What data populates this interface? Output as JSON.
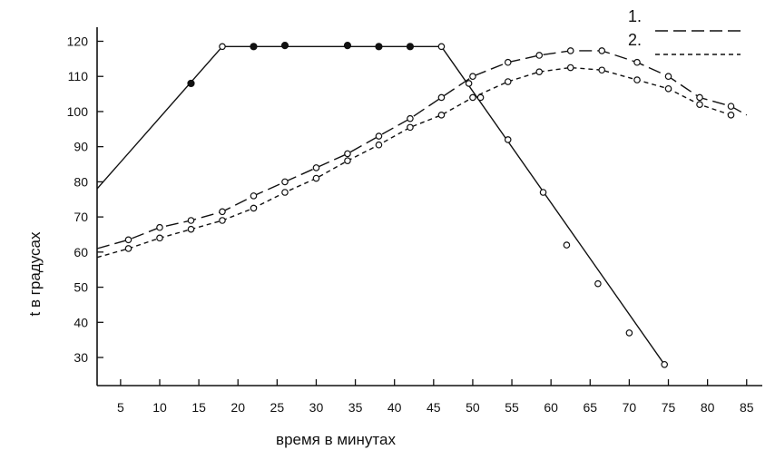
{
  "chart_data": {
    "type": "line",
    "xlabel": "время в минутах",
    "ylabel": "t  в градусах",
    "xlim": [
      2,
      87
    ],
    "ylim": [
      22,
      124
    ],
    "x_ticks": [
      5,
      10,
      15,
      20,
      25,
      30,
      35,
      40,
      45,
      50,
      55,
      60,
      65,
      70,
      75,
      80,
      85
    ],
    "y_ticks": [
      30,
      40,
      50,
      60,
      70,
      80,
      90,
      100,
      110,
      120
    ],
    "grid": false,
    "legend": {
      "placement": "top-right",
      "entries": [
        {
          "label": "1.",
          "series": 1
        },
        {
          "label": "2.",
          "series": 2
        }
      ]
    },
    "series": [
      {
        "style": "solid",
        "line": [
          [
            2,
            78
          ],
          [
            18,
            118.5
          ],
          [
            46,
            118.5
          ],
          [
            74.5,
            28
          ]
        ],
        "filled_markers": [
          [
            14,
            108
          ],
          [
            22,
            118.5
          ],
          [
            26,
            118.8
          ],
          [
            34,
            118.8
          ],
          [
            38,
            118.5
          ],
          [
            42,
            118.5
          ]
        ],
        "open_markers": [
          [
            18,
            118.5
          ],
          [
            46,
            118.5
          ],
          [
            49.5,
            108
          ],
          [
            51,
            104
          ],
          [
            54.5,
            92
          ],
          [
            59,
            77
          ],
          [
            62,
            62
          ],
          [
            66,
            51
          ],
          [
            70,
            37
          ],
          [
            74.5,
            28
          ]
        ]
      },
      {
        "style": "long-dash",
        "line": [
          [
            2,
            61
          ],
          [
            6,
            63.5
          ],
          [
            10,
            67
          ],
          [
            14,
            69
          ],
          [
            18,
            71.5
          ],
          [
            22,
            76
          ],
          [
            26,
            80
          ],
          [
            30,
            84
          ],
          [
            34,
            88
          ],
          [
            38,
            93
          ],
          [
            42,
            98
          ],
          [
            46,
            104
          ],
          [
            50,
            110
          ],
          [
            54.5,
            114
          ],
          [
            58.5,
            116
          ],
          [
            62.5,
            117.3
          ],
          [
            66.5,
            117.3
          ],
          [
            71,
            114
          ],
          [
            75,
            110
          ],
          [
            79,
            104
          ],
          [
            83,
            101.5
          ],
          [
            85,
            99
          ]
        ],
        "open_markers": [
          [
            6,
            63.5
          ],
          [
            10,
            67
          ],
          [
            14,
            69
          ],
          [
            18,
            71.5
          ],
          [
            22,
            76
          ],
          [
            26,
            80
          ],
          [
            30,
            84
          ],
          [
            34,
            88
          ],
          [
            38,
            93
          ],
          [
            42,
            98
          ],
          [
            46,
            104
          ],
          [
            50,
            110
          ],
          [
            54.5,
            114
          ],
          [
            58.5,
            116
          ],
          [
            62.5,
            117.3
          ],
          [
            66.5,
            117.3
          ],
          [
            71,
            114
          ],
          [
            75,
            110
          ],
          [
            79,
            104
          ],
          [
            83,
            101.5
          ]
        ]
      },
      {
        "style": "short-dash",
        "line": [
          [
            2,
            58.5
          ],
          [
            6,
            61
          ],
          [
            10,
            64
          ],
          [
            14,
            66.5
          ],
          [
            18,
            69
          ],
          [
            22,
            72.5
          ],
          [
            26,
            77
          ],
          [
            30,
            81
          ],
          [
            34,
            86
          ],
          [
            38,
            90.5
          ],
          [
            42,
            95.5
          ],
          [
            46,
            99
          ],
          [
            50,
            104
          ],
          [
            54.5,
            108.5
          ],
          [
            58.5,
            111.3
          ],
          [
            62.5,
            112.5
          ],
          [
            66.5,
            111.8
          ],
          [
            71,
            109
          ],
          [
            75,
            106.5
          ],
          [
            79,
            102
          ],
          [
            83,
            99
          ]
        ],
        "open_markers": [
          [
            6,
            61
          ],
          [
            10,
            64
          ],
          [
            14,
            66.5
          ],
          [
            18,
            69
          ],
          [
            22,
            72.5
          ],
          [
            26,
            77
          ],
          [
            30,
            81
          ],
          [
            34,
            86
          ],
          [
            38,
            90.5
          ],
          [
            42,
            95.5
          ],
          [
            46,
            99
          ],
          [
            50,
            104
          ],
          [
            54.5,
            108.5
          ],
          [
            58.5,
            111.3
          ],
          [
            62.5,
            112.5
          ],
          [
            66.5,
            111.8
          ],
          [
            71,
            109
          ],
          [
            75,
            106.5
          ],
          [
            79,
            102
          ],
          [
            83,
            99
          ]
        ]
      }
    ]
  }
}
